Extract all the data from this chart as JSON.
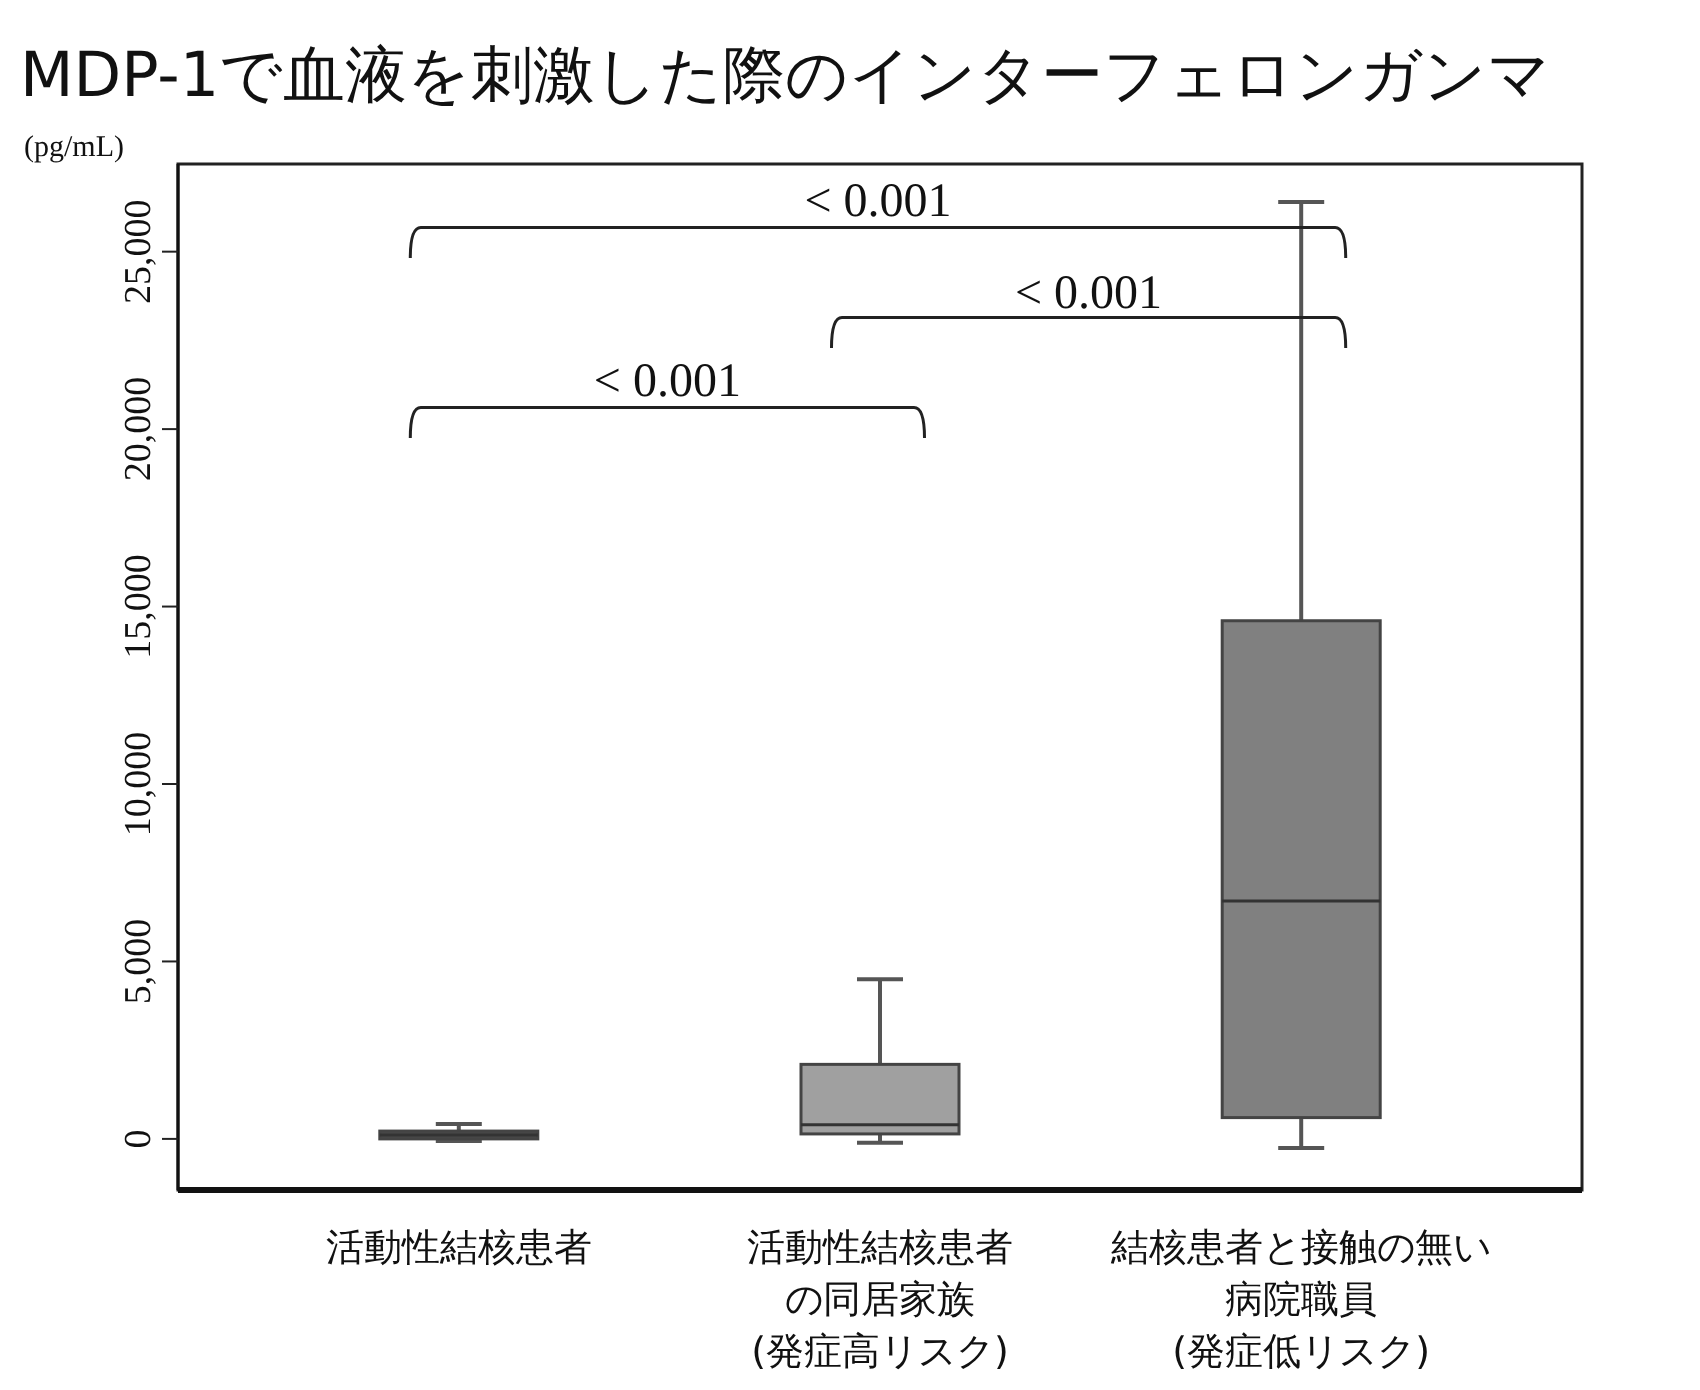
{
  "chart_data": {
    "type": "box",
    "title": "MDP-1で血液を刺激した際のインターフェロンガンマ",
    "ylabel": "(pg/mL)",
    "categories": [
      "活動性結核患者",
      "活動性結核患者の同居家族\n(発症高リスク)",
      "結核患者と接触の無い病院職員\n(発症低リスク)"
    ],
    "colors": [
      "#4a4a4a",
      "#a0a0a0",
      "#808080"
    ],
    "boxes": [
      {
        "low": -60,
        "q1": 0,
        "median": 110,
        "q3": 220,
        "high": 420
      },
      {
        "low": -110,
        "q1": 140,
        "median": 400,
        "q3": 2100,
        "high": 4500
      },
      {
        "low": -260,
        "q1": 600,
        "median": 6700,
        "q3": 14600,
        "high": 26400
      }
    ],
    "ylim": [
      -1440,
      27470
    ],
    "yticks": [
      {
        "value": 0,
        "label": "0"
      },
      {
        "value": 5000,
        "label": "5,000"
      },
      {
        "value": 10000,
        "label": "10,000"
      },
      {
        "value": 15000,
        "label": "15,000"
      },
      {
        "value": 20000,
        "label": "20,000"
      },
      {
        "value": 25000,
        "label": "25,000"
      }
    ],
    "annotations": [
      "< 0.001",
      "< 0.001",
      "< 0.001"
    ]
  }
}
